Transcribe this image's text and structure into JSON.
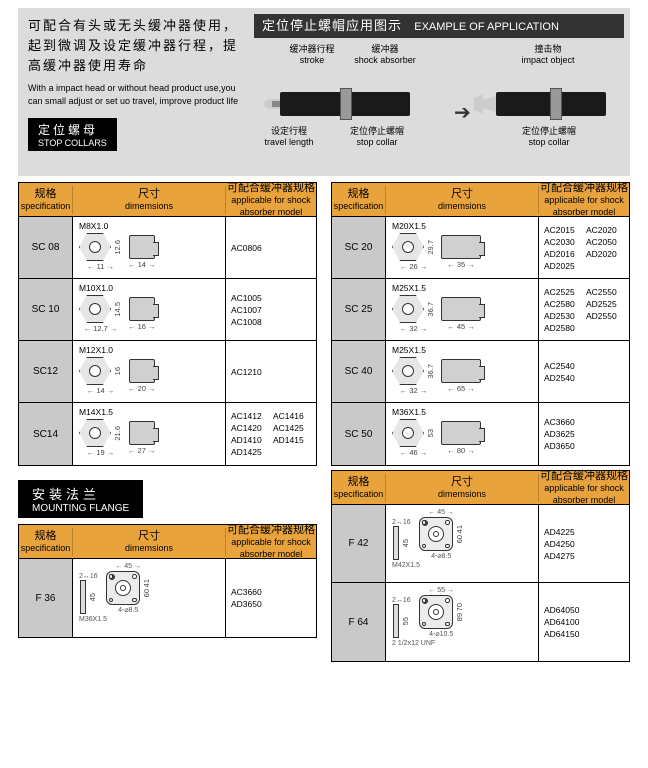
{
  "header": {
    "intro_cn": "可配合有头或无头缓冲器使用，起到微调及设定缓冲器行程，提高缓冲器使用寿命",
    "intro_en": "With a impact head or without head product use,you can small adjust or set uo travel, improve product life",
    "section_tab_cn": "定位螺母",
    "section_tab_en": "STOP COLLARS",
    "example_title_cn": "定位停止螺帽应用图示",
    "example_title_en": "EXAMPLE OF APPLICATION",
    "dia": {
      "stroke_cn": "缓冲器行程",
      "stroke_en": "stroke",
      "absorber_cn": "缓冲器",
      "absorber_en": "shock absorber",
      "impact_cn": "撞击物",
      "impact_en": "impact object",
      "travel_cn": "设定行程",
      "travel_en": "travel length",
      "collar_cn": "定位停止螺帽",
      "collar_en": "stop collar"
    }
  },
  "cols": {
    "spec_cn": "规格",
    "spec_en": "specification",
    "dim_cn": "尺寸",
    "dim_en": "dimemsions",
    "app_cn": "可配合缓冲器规格",
    "app_en": "applicable for shock absorber model"
  },
  "left_rows": [
    {
      "name": "SC 08",
      "thread": "M8X1.0",
      "w": "11",
      "h": "12.6",
      "side": "14",
      "apps": [
        "AC0806"
      ]
    },
    {
      "name": "SC 10",
      "thread": "M10X1.0",
      "w": "12.7",
      "h": "14.5",
      "side": "16",
      "apps": [
        "AC1005",
        "AC1007",
        "AC1008"
      ]
    },
    {
      "name": "SC12",
      "thread": "M12X1.0",
      "w": "14",
      "h": "16",
      "side": "20",
      "apps": [
        "AC1210"
      ]
    },
    {
      "name": "SC14",
      "thread": "M14X1.5",
      "w": "19",
      "h": "21.6",
      "side": "27",
      "apps": [
        "AC1412",
        "AC1416",
        "AC1420",
        "AC1425",
        "AD1410",
        "AD1415",
        "AD1425"
      ]
    }
  ],
  "right_rows": [
    {
      "name": "SC 20",
      "thread": "M20X1.5",
      "w": "26",
      "h": "29.7",
      "side": "35",
      "apps": [
        "AC2015",
        "AC2020",
        "AC2030",
        "AC2050",
        "AD2016",
        "AD2020",
        "AD2025"
      ]
    },
    {
      "name": "SC 25",
      "thread": "M25X1.5",
      "w": "32",
      "h": "36.7",
      "side": "45",
      "apps": [
        "AC2525",
        "AC2550",
        "AC2580",
        "AD2525",
        "AD2530",
        "AD2550",
        "AD2580"
      ]
    },
    {
      "name": "SC 40",
      "thread": "M25X1.5",
      "w": "32",
      "h": "36.7",
      "side": "65",
      "apps": [
        "AC2540",
        "AD2540"
      ]
    },
    {
      "name": "SC 50",
      "thread": "M36X1.5",
      "w": "46",
      "h": "53",
      "side": "80",
      "apps": [
        "AC3660",
        "AD3625",
        "AD3650"
      ]
    }
  ],
  "mount": {
    "tab_cn": "安装法兰",
    "tab_en": "MOUNTING FLANGE"
  },
  "flange_left": [
    {
      "name": "F 36",
      "thread": "M36X1.5",
      "side": "45",
      "h": "60",
      "hi": "41",
      "t": "16",
      "t2": "2",
      "bolt": "4-⌀8.5",
      "apps": [
        "AC3660",
        "AD3650"
      ]
    }
  ],
  "flange_right": [
    {
      "name": "F 42",
      "thread": "M42X1.5",
      "side": "45",
      "h": "60",
      "hi": "41",
      "t": "16",
      "t2": "2",
      "bolt": "4-⌀8.5",
      "apps": [
        "AD4225",
        "AD4250",
        "AD4275"
      ]
    },
    {
      "name": "F 64",
      "thread": "2 1/2x12 UNF",
      "side": "55",
      "h": "89",
      "hi": "70",
      "t": "16",
      "t2": "2",
      "bolt": "4-⌀10.5",
      "sidew": "55",
      "apps": [
        "AD64050",
        "AD64100",
        "AD64150"
      ]
    }
  ]
}
